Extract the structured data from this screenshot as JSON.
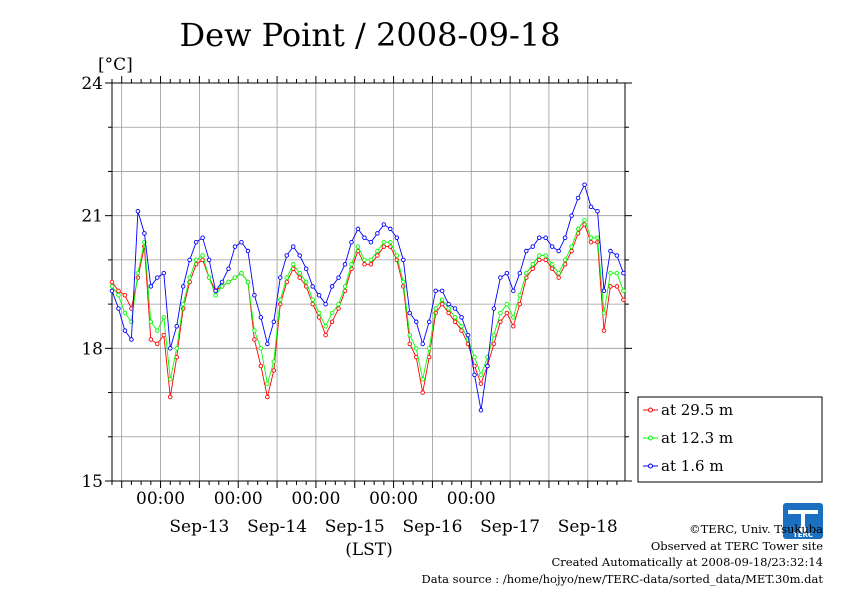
{
  "chart_data": {
    "type": "line",
    "title": "Dew Point / 2008-09-18",
    "ylabel": "[°C]",
    "xlabel": "(LST)",
    "ylim": [
      15,
      24
    ],
    "yticks": [
      15,
      18,
      21,
      24
    ],
    "x_range": [
      "2008-09-12 09:00",
      "2008-09-18 23:30"
    ],
    "x_time_ticks": [
      {
        "time": "2008-09-13 00:00",
        "label": "00:00"
      },
      {
        "time": "2008-09-14 00:00",
        "label": "00:00"
      },
      {
        "time": "2008-09-15 00:00",
        "label": "00:00"
      },
      {
        "time": "2008-09-16 00:00",
        "label": "00:00"
      },
      {
        "time": "2008-09-17 00:00",
        "label": "00:00"
      }
    ],
    "x_date_labels": [
      "Sep-13",
      "Sep-14",
      "Sep-15",
      "Sep-16",
      "Sep-17",
      "Sep-18"
    ],
    "grid": true,
    "legend_position": "right",
    "series": [
      {
        "name": "at 29.5 m",
        "color": "#ff0000",
        "points": [
          [
            "2008-09-12 09:00",
            19.5
          ],
          [
            "2008-09-12 11:00",
            19.3
          ],
          [
            "2008-09-12 13:00",
            19.2
          ],
          [
            "2008-09-12 15:00",
            18.9
          ],
          [
            "2008-09-12 17:00",
            19.6
          ],
          [
            "2008-09-12 19:00",
            20.3
          ],
          [
            "2008-09-12 21:00",
            18.2
          ],
          [
            "2008-09-12 23:00",
            18.1
          ],
          [
            "2008-09-13 01:00",
            18.3
          ],
          [
            "2008-09-13 03:00",
            16.9
          ],
          [
            "2008-09-13 05:00",
            17.8
          ],
          [
            "2008-09-13 07:00",
            18.9
          ],
          [
            "2008-09-13 09:00",
            19.5
          ],
          [
            "2008-09-13 11:00",
            19.9
          ],
          [
            "2008-09-13 13:00",
            20.0
          ],
          [
            "2008-09-13 15:00",
            19.6
          ],
          [
            "2008-09-13 17:00",
            19.3
          ],
          [
            "2008-09-13 19:00",
            19.4
          ],
          [
            "2008-09-13 21:00",
            19.5
          ],
          [
            "2008-09-13 23:00",
            19.6
          ],
          [
            "2008-09-14 01:00",
            19.7
          ],
          [
            "2008-09-14 03:00",
            19.5
          ],
          [
            "2008-09-14 05:00",
            18.2
          ],
          [
            "2008-09-14 07:00",
            17.6
          ],
          [
            "2008-09-14 09:00",
            16.9
          ],
          [
            "2008-09-14 11:00",
            17.5
          ],
          [
            "2008-09-14 13:00",
            19.0
          ],
          [
            "2008-09-14 15:00",
            19.5
          ],
          [
            "2008-09-14 17:00",
            19.8
          ],
          [
            "2008-09-14 19:00",
            19.6
          ],
          [
            "2008-09-14 21:00",
            19.4
          ],
          [
            "2008-09-14 23:00",
            19.0
          ],
          [
            "2008-09-15 01:00",
            18.7
          ],
          [
            "2008-09-15 03:00",
            18.3
          ],
          [
            "2008-09-15 05:00",
            18.6
          ],
          [
            "2008-09-15 07:00",
            18.9
          ],
          [
            "2008-09-15 09:00",
            19.3
          ],
          [
            "2008-09-15 11:00",
            19.8
          ],
          [
            "2008-09-15 13:00",
            20.2
          ],
          [
            "2008-09-15 15:00",
            19.9
          ],
          [
            "2008-09-15 17:00",
            19.9
          ],
          [
            "2008-09-15 19:00",
            20.1
          ],
          [
            "2008-09-15 21:00",
            20.3
          ],
          [
            "2008-09-15 23:00",
            20.3
          ],
          [
            "2008-09-16 01:00",
            20.0
          ],
          [
            "2008-09-16 03:00",
            19.4
          ],
          [
            "2008-09-16 05:00",
            18.1
          ],
          [
            "2008-09-16 07:00",
            17.8
          ],
          [
            "2008-09-16 09:00",
            17.0
          ],
          [
            "2008-09-16 11:00",
            17.8
          ],
          [
            "2008-09-16 13:00",
            18.8
          ],
          [
            "2008-09-16 15:00",
            19.0
          ],
          [
            "2008-09-16 17:00",
            18.8
          ],
          [
            "2008-09-16 19:00",
            18.6
          ],
          [
            "2008-09-16 21:00",
            18.4
          ],
          [
            "2008-09-16 23:00",
            18.1
          ],
          [
            "2008-09-17 01:00",
            17.6
          ],
          [
            "2008-09-17 03:00",
            17.2
          ],
          [
            "2008-09-17 05:00",
            17.6
          ],
          [
            "2008-09-17 07:00",
            18.1
          ],
          [
            "2008-09-17 09:00",
            18.6
          ],
          [
            "2008-09-17 11:00",
            18.8
          ],
          [
            "2008-09-17 13:00",
            18.5
          ],
          [
            "2008-09-17 15:00",
            19.0
          ],
          [
            "2008-09-17 17:00",
            19.6
          ],
          [
            "2008-09-17 19:00",
            19.8
          ],
          [
            "2008-09-17 21:00",
            20.0
          ],
          [
            "2008-09-17 23:00",
            20.0
          ],
          [
            "2008-09-18 01:00",
            19.8
          ],
          [
            "2008-09-18 03:00",
            19.6
          ],
          [
            "2008-09-18 05:00",
            19.9
          ],
          [
            "2008-09-18 07:00",
            20.2
          ],
          [
            "2008-09-18 09:00",
            20.6
          ],
          [
            "2008-09-18 11:00",
            20.8
          ],
          [
            "2008-09-18 13:00",
            20.4
          ],
          [
            "2008-09-18 15:00",
            20.4
          ],
          [
            "2008-09-18 17:00",
            18.4
          ],
          [
            "2008-09-18 19:00",
            19.4
          ],
          [
            "2008-09-18 21:00",
            19.4
          ],
          [
            "2008-09-18 23:00",
            19.1
          ]
        ]
      },
      {
        "name": "at 12.3 m",
        "color": "#00ff00",
        "points": [
          [
            "2008-09-12 09:00",
            19.4
          ],
          [
            "2008-09-12 11:00",
            19.2
          ],
          [
            "2008-09-12 13:00",
            18.8
          ],
          [
            "2008-09-12 15:00",
            18.6
          ],
          [
            "2008-09-12 17:00",
            19.7
          ],
          [
            "2008-09-12 19:00",
            20.4
          ],
          [
            "2008-09-12 21:00",
            18.6
          ],
          [
            "2008-09-12 23:00",
            18.4
          ],
          [
            "2008-09-13 01:00",
            18.7
          ],
          [
            "2008-09-13 03:00",
            17.3
          ],
          [
            "2008-09-13 05:00",
            18.0
          ],
          [
            "2008-09-13 07:00",
            19.0
          ],
          [
            "2008-09-13 09:00",
            19.6
          ],
          [
            "2008-09-13 11:00",
            20.0
          ],
          [
            "2008-09-13 13:00",
            20.1
          ],
          [
            "2008-09-13 15:00",
            19.6
          ],
          [
            "2008-09-13 17:00",
            19.2
          ],
          [
            "2008-09-13 19:00",
            19.4
          ],
          [
            "2008-09-13 21:00",
            19.5
          ],
          [
            "2008-09-13 23:00",
            19.6
          ],
          [
            "2008-09-14 01:00",
            19.7
          ],
          [
            "2008-09-14 03:00",
            19.5
          ],
          [
            "2008-09-14 05:00",
            18.4
          ],
          [
            "2008-09-14 07:00",
            18.0
          ],
          [
            "2008-09-14 09:00",
            17.2
          ],
          [
            "2008-09-14 11:00",
            17.7
          ],
          [
            "2008-09-14 13:00",
            19.1
          ],
          [
            "2008-09-14 15:00",
            19.6
          ],
          [
            "2008-09-14 17:00",
            19.9
          ],
          [
            "2008-09-14 19:00",
            19.7
          ],
          [
            "2008-09-14 21:00",
            19.5
          ],
          [
            "2008-09-14 23:00",
            19.1
          ],
          [
            "2008-09-15 01:00",
            18.8
          ],
          [
            "2008-09-15 03:00",
            18.5
          ],
          [
            "2008-09-15 05:00",
            18.8
          ],
          [
            "2008-09-15 07:00",
            19.0
          ],
          [
            "2008-09-15 09:00",
            19.4
          ],
          [
            "2008-09-15 11:00",
            19.9
          ],
          [
            "2008-09-15 13:00",
            20.3
          ],
          [
            "2008-09-15 15:00",
            20.0
          ],
          [
            "2008-09-15 17:00",
            20.0
          ],
          [
            "2008-09-15 19:00",
            20.2
          ],
          [
            "2008-09-15 21:00",
            20.4
          ],
          [
            "2008-09-15 23:00",
            20.4
          ],
          [
            "2008-09-16 01:00",
            20.1
          ],
          [
            "2008-09-16 03:00",
            19.5
          ],
          [
            "2008-09-16 05:00",
            18.3
          ],
          [
            "2008-09-16 07:00",
            18.0
          ],
          [
            "2008-09-16 09:00",
            17.3
          ],
          [
            "2008-09-16 11:00",
            18.0
          ],
          [
            "2008-09-16 13:00",
            18.9
          ],
          [
            "2008-09-16 15:00",
            19.1
          ],
          [
            "2008-09-16 17:00",
            18.9
          ],
          [
            "2008-09-16 19:00",
            18.7
          ],
          [
            "2008-09-16 21:00",
            18.5
          ],
          [
            "2008-09-16 23:00",
            18.2
          ],
          [
            "2008-09-17 01:00",
            17.8
          ],
          [
            "2008-09-17 03:00",
            17.4
          ],
          [
            "2008-09-17 05:00",
            17.8
          ],
          [
            "2008-09-17 07:00",
            18.3
          ],
          [
            "2008-09-17 09:00",
            18.8
          ],
          [
            "2008-09-17 11:00",
            19.0
          ],
          [
            "2008-09-17 13:00",
            18.7
          ],
          [
            "2008-09-17 15:00",
            19.2
          ],
          [
            "2008-09-17 17:00",
            19.7
          ],
          [
            "2008-09-17 19:00",
            19.9
          ],
          [
            "2008-09-17 21:00",
            20.1
          ],
          [
            "2008-09-17 23:00",
            20.1
          ],
          [
            "2008-09-18 01:00",
            19.9
          ],
          [
            "2008-09-18 03:00",
            19.7
          ],
          [
            "2008-09-18 05:00",
            20.0
          ],
          [
            "2008-09-18 07:00",
            20.3
          ],
          [
            "2008-09-18 09:00",
            20.7
          ],
          [
            "2008-09-18 11:00",
            20.9
          ],
          [
            "2008-09-18 13:00",
            20.5
          ],
          [
            "2008-09-18 15:00",
            20.5
          ],
          [
            "2008-09-18 17:00",
            18.8
          ],
          [
            "2008-09-18 19:00",
            19.7
          ],
          [
            "2008-09-18 21:00",
            19.7
          ],
          [
            "2008-09-18 23:00",
            19.3
          ]
        ]
      },
      {
        "name": "at 1.6 m",
        "color": "#0000ff",
        "points": [
          [
            "2008-09-12 09:00",
            19.3
          ],
          [
            "2008-09-12 11:00",
            18.9
          ],
          [
            "2008-09-12 13:00",
            18.4
          ],
          [
            "2008-09-12 15:00",
            18.2
          ],
          [
            "2008-09-12 17:00",
            21.1
          ],
          [
            "2008-09-12 19:00",
            20.6
          ],
          [
            "2008-09-12 21:00",
            19.4
          ],
          [
            "2008-09-12 23:00",
            19.6
          ],
          [
            "2008-09-13 01:00",
            19.7
          ],
          [
            "2008-09-13 03:00",
            18.0
          ],
          [
            "2008-09-13 05:00",
            18.5
          ],
          [
            "2008-09-13 07:00",
            19.4
          ],
          [
            "2008-09-13 09:00",
            20.0
          ],
          [
            "2008-09-13 11:00",
            20.4
          ],
          [
            "2008-09-13 13:00",
            20.5
          ],
          [
            "2008-09-13 15:00",
            20.0
          ],
          [
            "2008-09-13 17:00",
            19.3
          ],
          [
            "2008-09-13 19:00",
            19.5
          ],
          [
            "2008-09-13 21:00",
            19.8
          ],
          [
            "2008-09-13 23:00",
            20.3
          ],
          [
            "2008-09-14 01:00",
            20.4
          ],
          [
            "2008-09-14 03:00",
            20.2
          ],
          [
            "2008-09-14 05:00",
            19.2
          ],
          [
            "2008-09-14 07:00",
            18.7
          ],
          [
            "2008-09-14 09:00",
            18.1
          ],
          [
            "2008-09-14 11:00",
            18.6
          ],
          [
            "2008-09-14 13:00",
            19.6
          ],
          [
            "2008-09-14 15:00",
            20.1
          ],
          [
            "2008-09-14 17:00",
            20.3
          ],
          [
            "2008-09-14 19:00",
            20.1
          ],
          [
            "2008-09-14 21:00",
            19.8
          ],
          [
            "2008-09-14 23:00",
            19.4
          ],
          [
            "2008-09-15 01:00",
            19.2
          ],
          [
            "2008-09-15 03:00",
            19.0
          ],
          [
            "2008-09-15 05:00",
            19.4
          ],
          [
            "2008-09-15 07:00",
            19.6
          ],
          [
            "2008-09-15 09:00",
            19.9
          ],
          [
            "2008-09-15 11:00",
            20.4
          ],
          [
            "2008-09-15 13:00",
            20.7
          ],
          [
            "2008-09-15 15:00",
            20.5
          ],
          [
            "2008-09-15 17:00",
            20.4
          ],
          [
            "2008-09-15 19:00",
            20.6
          ],
          [
            "2008-09-15 21:00",
            20.8
          ],
          [
            "2008-09-15 23:00",
            20.7
          ],
          [
            "2008-09-16 01:00",
            20.5
          ],
          [
            "2008-09-16 03:00",
            20.0
          ],
          [
            "2008-09-16 05:00",
            18.8
          ],
          [
            "2008-09-16 07:00",
            18.6
          ],
          [
            "2008-09-16 09:00",
            18.1
          ],
          [
            "2008-09-16 11:00",
            18.6
          ],
          [
            "2008-09-16 13:00",
            19.3
          ],
          [
            "2008-09-16 15:00",
            19.3
          ],
          [
            "2008-09-16 17:00",
            19.0
          ],
          [
            "2008-09-16 19:00",
            18.9
          ],
          [
            "2008-09-16 21:00",
            18.7
          ],
          [
            "2008-09-16 23:00",
            18.3
          ],
          [
            "2008-09-17 01:00",
            17.4
          ],
          [
            "2008-09-17 03:00",
            16.6
          ],
          [
            "2008-09-17 05:00",
            17.6
          ],
          [
            "2008-09-17 07:00",
            18.9
          ],
          [
            "2008-09-17 09:00",
            19.6
          ],
          [
            "2008-09-17 11:00",
            19.7
          ],
          [
            "2008-09-17 13:00",
            19.3
          ],
          [
            "2008-09-17 15:00",
            19.7
          ],
          [
            "2008-09-17 17:00",
            20.2
          ],
          [
            "2008-09-17 19:00",
            20.3
          ],
          [
            "2008-09-17 21:00",
            20.5
          ],
          [
            "2008-09-17 23:00",
            20.5
          ],
          [
            "2008-09-18 01:00",
            20.3
          ],
          [
            "2008-09-18 03:00",
            20.2
          ],
          [
            "2008-09-18 05:00",
            20.5
          ],
          [
            "2008-09-18 07:00",
            21.0
          ],
          [
            "2008-09-18 09:00",
            21.4
          ],
          [
            "2008-09-18 11:00",
            21.7
          ],
          [
            "2008-09-18 13:00",
            21.2
          ],
          [
            "2008-09-18 15:00",
            21.1
          ],
          [
            "2008-09-18 17:00",
            19.3
          ],
          [
            "2008-09-18 19:00",
            20.2
          ],
          [
            "2008-09-18 21:00",
            20.1
          ],
          [
            "2008-09-18 23:00",
            19.7
          ]
        ]
      }
    ]
  },
  "credits": {
    "copyright": "©TERC, Univ. Tsukuba",
    "observed": "Observed at TERC Tower site",
    "created": "Created Automatically at 2008-09-18/23:32:14",
    "source": "Data source : /home/hojyo/new/TERC-data/sorted_data/MET.30m.dat"
  },
  "logo": {
    "text": "TERC",
    "color": "#1a6fc0"
  }
}
